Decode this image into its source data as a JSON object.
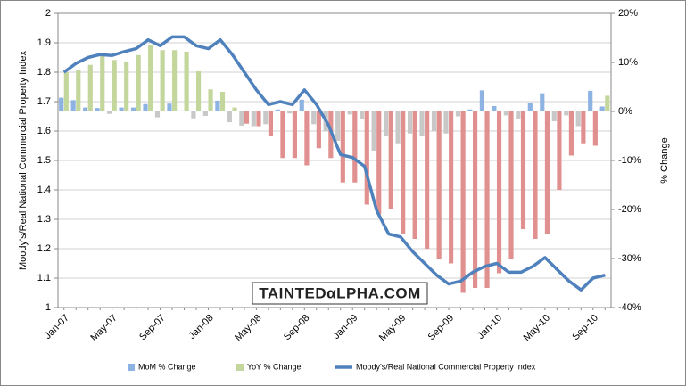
{
  "chart_data": {
    "type": "bar-line",
    "y_label": "Moody's/Real National Commercial Property Index",
    "y2_label": "% Change",
    "watermark": "TAINTEDαLPHA.COM",
    "categories": [
      "Jan-07",
      null,
      null,
      null,
      "May-07",
      null,
      null,
      null,
      "Sep-07",
      null,
      null,
      null,
      "Jan-08",
      null,
      null,
      null,
      "May-08",
      null,
      null,
      null,
      "Sep-08",
      null,
      null,
      null,
      "Jan-09",
      null,
      null,
      null,
      "May-09",
      null,
      null,
      null,
      "Sep-09",
      null,
      null,
      null,
      "Jan-10",
      null,
      null,
      null,
      "May-10",
      null,
      null,
      null,
      "Sep-10",
      null
    ],
    "series": [
      {
        "name": "MoM % Change",
        "kind": "bar",
        "axis": "y2",
        "color": "#8db3e2",
        "negative_color": "#c8c8c8",
        "values": [
          2.8,
          2.3,
          0.8,
          0.7,
          -0.5,
          0.8,
          0.8,
          1.5,
          -1.2,
          1.6,
          0.2,
          -1.4,
          -0.9,
          2.2,
          -2.2,
          -2.9,
          -3.0,
          -2.6,
          0.4,
          -0.4,
          2.4,
          -2.6,
          -4.0,
          -6.0,
          -0.6,
          -1.5,
          -8.0,
          -5.0,
          -6.5,
          -4.5,
          -5.0,
          -4.0,
          -4.5,
          -1.0,
          0.4,
          4.3,
          1.1,
          -0.8,
          -1.5,
          1.7,
          3.7,
          -2.0,
          -0.8,
          -3.0,
          4.2,
          1.0
        ]
      },
      {
        "name": "YoY % Change",
        "kind": "bar",
        "axis": "y2",
        "color": "#c3d69b",
        "negative_color": "#e0908e",
        "values": [
          8,
          8.4,
          9.5,
          11.5,
          10.5,
          10.2,
          11.5,
          13.5,
          12.5,
          12.5,
          12.2,
          8.2,
          4.5,
          4.0,
          0.8,
          -2.5,
          -3,
          -5,
          -9.5,
          -9.5,
          -11,
          -7.5,
          -9.5,
          -14.5,
          -14.5,
          -19,
          -21,
          -20,
          -25,
          -26,
          -28,
          -30,
          -31,
          -37,
          -36,
          -36,
          -33,
          -30,
          -24,
          -26,
          -25,
          -16,
          -9,
          -6.5,
          -7,
          3.2
        ]
      },
      {
        "name": "Moody's/Real National Commercial Property Index",
        "kind": "line",
        "axis": "y",
        "color": "#4f81bd",
        "values": [
          1.8,
          1.83,
          1.85,
          1.86,
          1.857,
          1.87,
          1.88,
          1.91,
          1.89,
          1.92,
          1.92,
          1.89,
          1.88,
          1.91,
          1.86,
          1.8,
          1.74,
          1.69,
          1.7,
          1.69,
          1.74,
          1.69,
          1.62,
          1.52,
          1.51,
          1.48,
          1.33,
          1.25,
          1.24,
          1.19,
          1.15,
          1.11,
          1.08,
          1.09,
          1.12,
          1.14,
          1.15,
          1.12,
          1.12,
          1.14,
          1.17,
          1.13,
          1.09,
          1.06,
          1.1,
          1.11
        ]
      }
    ],
    "ylim": [
      1,
      2
    ],
    "yticks": [
      1,
      1.1,
      1.2,
      1.3,
      1.4,
      1.5,
      1.6,
      1.7,
      1.8,
      1.9,
      2
    ],
    "y2lim": [
      -40,
      20
    ],
    "y2ticks": [
      {
        "value": -40,
        "label": "-40%"
      },
      {
        "value": -30,
        "label": "-30%"
      },
      {
        "value": -20,
        "label": "-20%"
      },
      {
        "value": -10,
        "label": "-10%"
      },
      {
        "value": 0,
        "label": "0%"
      },
      {
        "value": 10,
        "label": "10%"
      },
      {
        "value": 20,
        "label": "20%"
      }
    ],
    "grid": true,
    "legend": "bottom"
  }
}
